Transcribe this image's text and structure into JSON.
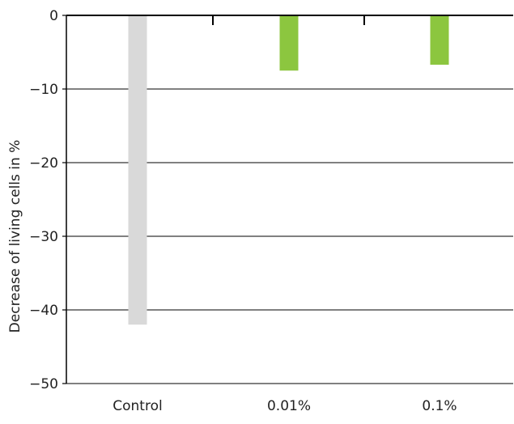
{
  "chart_data": {
    "type": "bar",
    "title": "",
    "xlabel": "",
    "ylabel": "Decrease of living cells in %",
    "categories": [
      "Control",
      "0.01%",
      "0.1%"
    ],
    "values": [
      -42,
      -7.5,
      -6.7
    ],
    "ylim": [
      -50,
      0
    ],
    "yticks": [
      0,
      -10,
      -20,
      -30,
      -40,
      -50
    ],
    "ytick_labels": [
      "0",
      "−10",
      "−20",
      "−30",
      "−40",
      "−50"
    ],
    "grid": "horizontal",
    "bar_colors": [
      "#d9d9d9",
      "#8cc63f",
      "#8cc63f"
    ],
    "axis_color": "#000000"
  }
}
